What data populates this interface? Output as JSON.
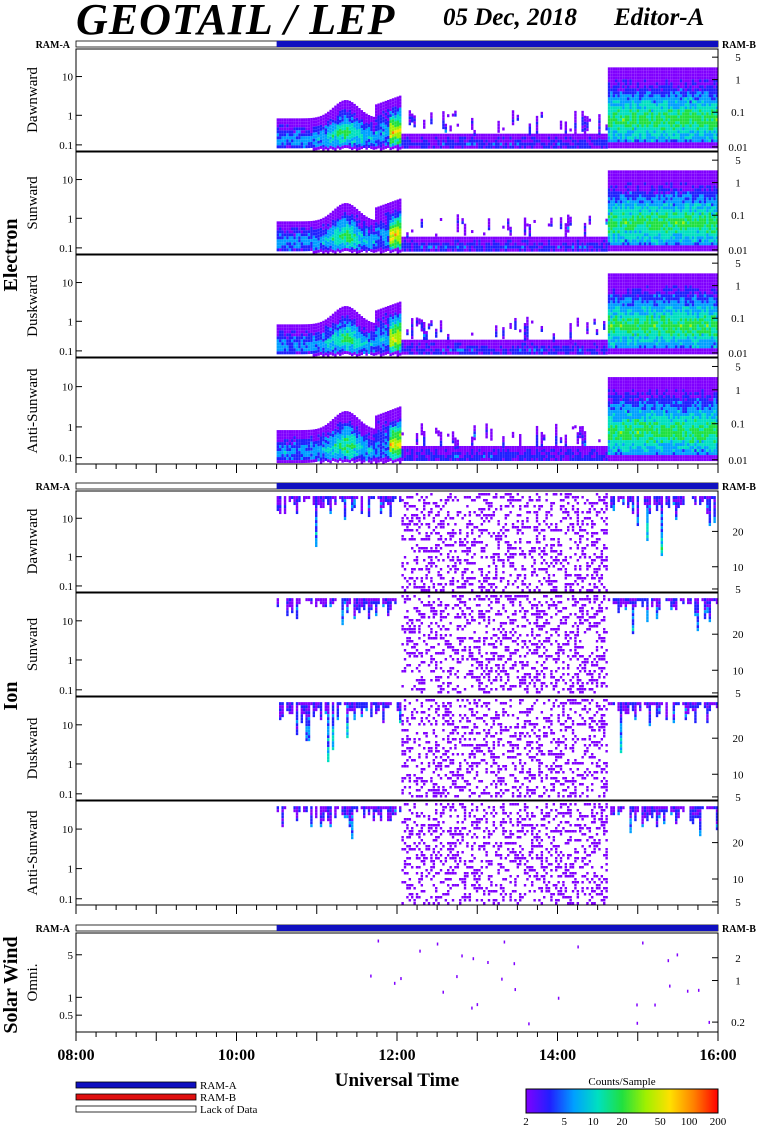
{
  "header": {
    "title": "GEOTAIL / LEP",
    "date": "05 Dec, 2018",
    "editor": "Editor-A"
  },
  "colors": {
    "ram_a": "#1010c0",
    "ram_b": "#e01010",
    "lack_of_data": "#ffffff",
    "colormap": [
      "#8000ff",
      "#2020ff",
      "#00a0ff",
      "#00e0c0",
      "#20e040",
      "#a0f000",
      "#ffe000",
      "#ff8000",
      "#ff0000"
    ]
  },
  "chart_data": {
    "type": "heatmap",
    "xlabel": "Universal Time",
    "x_range_hours": [
      8,
      16
    ],
    "x_ticks": [
      "08:00",
      "10:00",
      "12:00",
      "14:00",
      "16:00"
    ],
    "sections": [
      {
        "name": "Electron",
        "mode_bar": {
          "left_label": "RAM-A",
          "right_label": "RAM-B",
          "data_from_hour": 10.5,
          "mode_after": "RAM-A"
        },
        "panels": [
          {
            "label": "Dawnward",
            "left_ticks": [
              "0.1",
              "1",
              "10"
            ],
            "right_ticks": [
              "0.01",
              "0.1",
              "1",
              "5"
            ]
          },
          {
            "label": "Sunward",
            "left_ticks": [
              "0.1",
              "1",
              "10"
            ],
            "right_ticks": [
              "0.01",
              "0.1",
              "1",
              "5"
            ]
          },
          {
            "label": "Duskward",
            "left_ticks": [
              "0.1",
              "1",
              "10"
            ],
            "right_ticks": [
              "0.01",
              "0.1",
              "1",
              "5"
            ]
          },
          {
            "label": "Anti-Sunward",
            "left_ticks": [
              "0.1",
              "1",
              "10"
            ],
            "right_ticks": [
              "0.01",
              "0.1",
              "1",
              "5"
            ]
          }
        ]
      },
      {
        "name": "Ion",
        "mode_bar": {
          "left_label": "RAM-A",
          "right_label": "RAM-B",
          "data_from_hour": 10.5,
          "mode_after": "RAM-A"
        },
        "panels": [
          {
            "label": "Dawnward",
            "left_ticks": [
              "0.1",
              "1",
              "10"
            ],
            "right_ticks": [
              "5",
              "10",
              "20"
            ]
          },
          {
            "label": "Sunward",
            "left_ticks": [
              "0.1",
              "1",
              "10"
            ],
            "right_ticks": [
              "5",
              "10",
              "20"
            ]
          },
          {
            "label": "Duskward",
            "left_ticks": [
              "0.1",
              "1",
              "10"
            ],
            "right_ticks": [
              "5",
              "10",
              "20"
            ]
          },
          {
            "label": "Anti-Sunward",
            "left_ticks": [
              "0.1",
              "1",
              "10"
            ],
            "right_ticks": [
              "5",
              "10",
              "20"
            ]
          }
        ]
      },
      {
        "name": "Solar Wind",
        "mode_bar": {
          "left_label": "RAM-A",
          "right_label": "RAM-B",
          "data_from_hour": 10.5,
          "mode_after": "RAM-A"
        },
        "panels": [
          {
            "label": "Omni.",
            "left_ticks": [
              "0.5",
              "1",
              "5"
            ],
            "right_ticks": [
              "0.2",
              "1",
              "2"
            ]
          }
        ]
      }
    ],
    "legend": [
      {
        "label": "RAM-A",
        "color": "#1010c0"
      },
      {
        "label": "RAM-B",
        "color": "#e01010"
      },
      {
        "label": "Lack of Data",
        "color": "#ffffff"
      }
    ],
    "colorbar": {
      "title": "Counts/Sample",
      "ticks": [
        "2",
        "5",
        "10",
        "20",
        "50",
        "100",
        "200"
      ]
    }
  }
}
